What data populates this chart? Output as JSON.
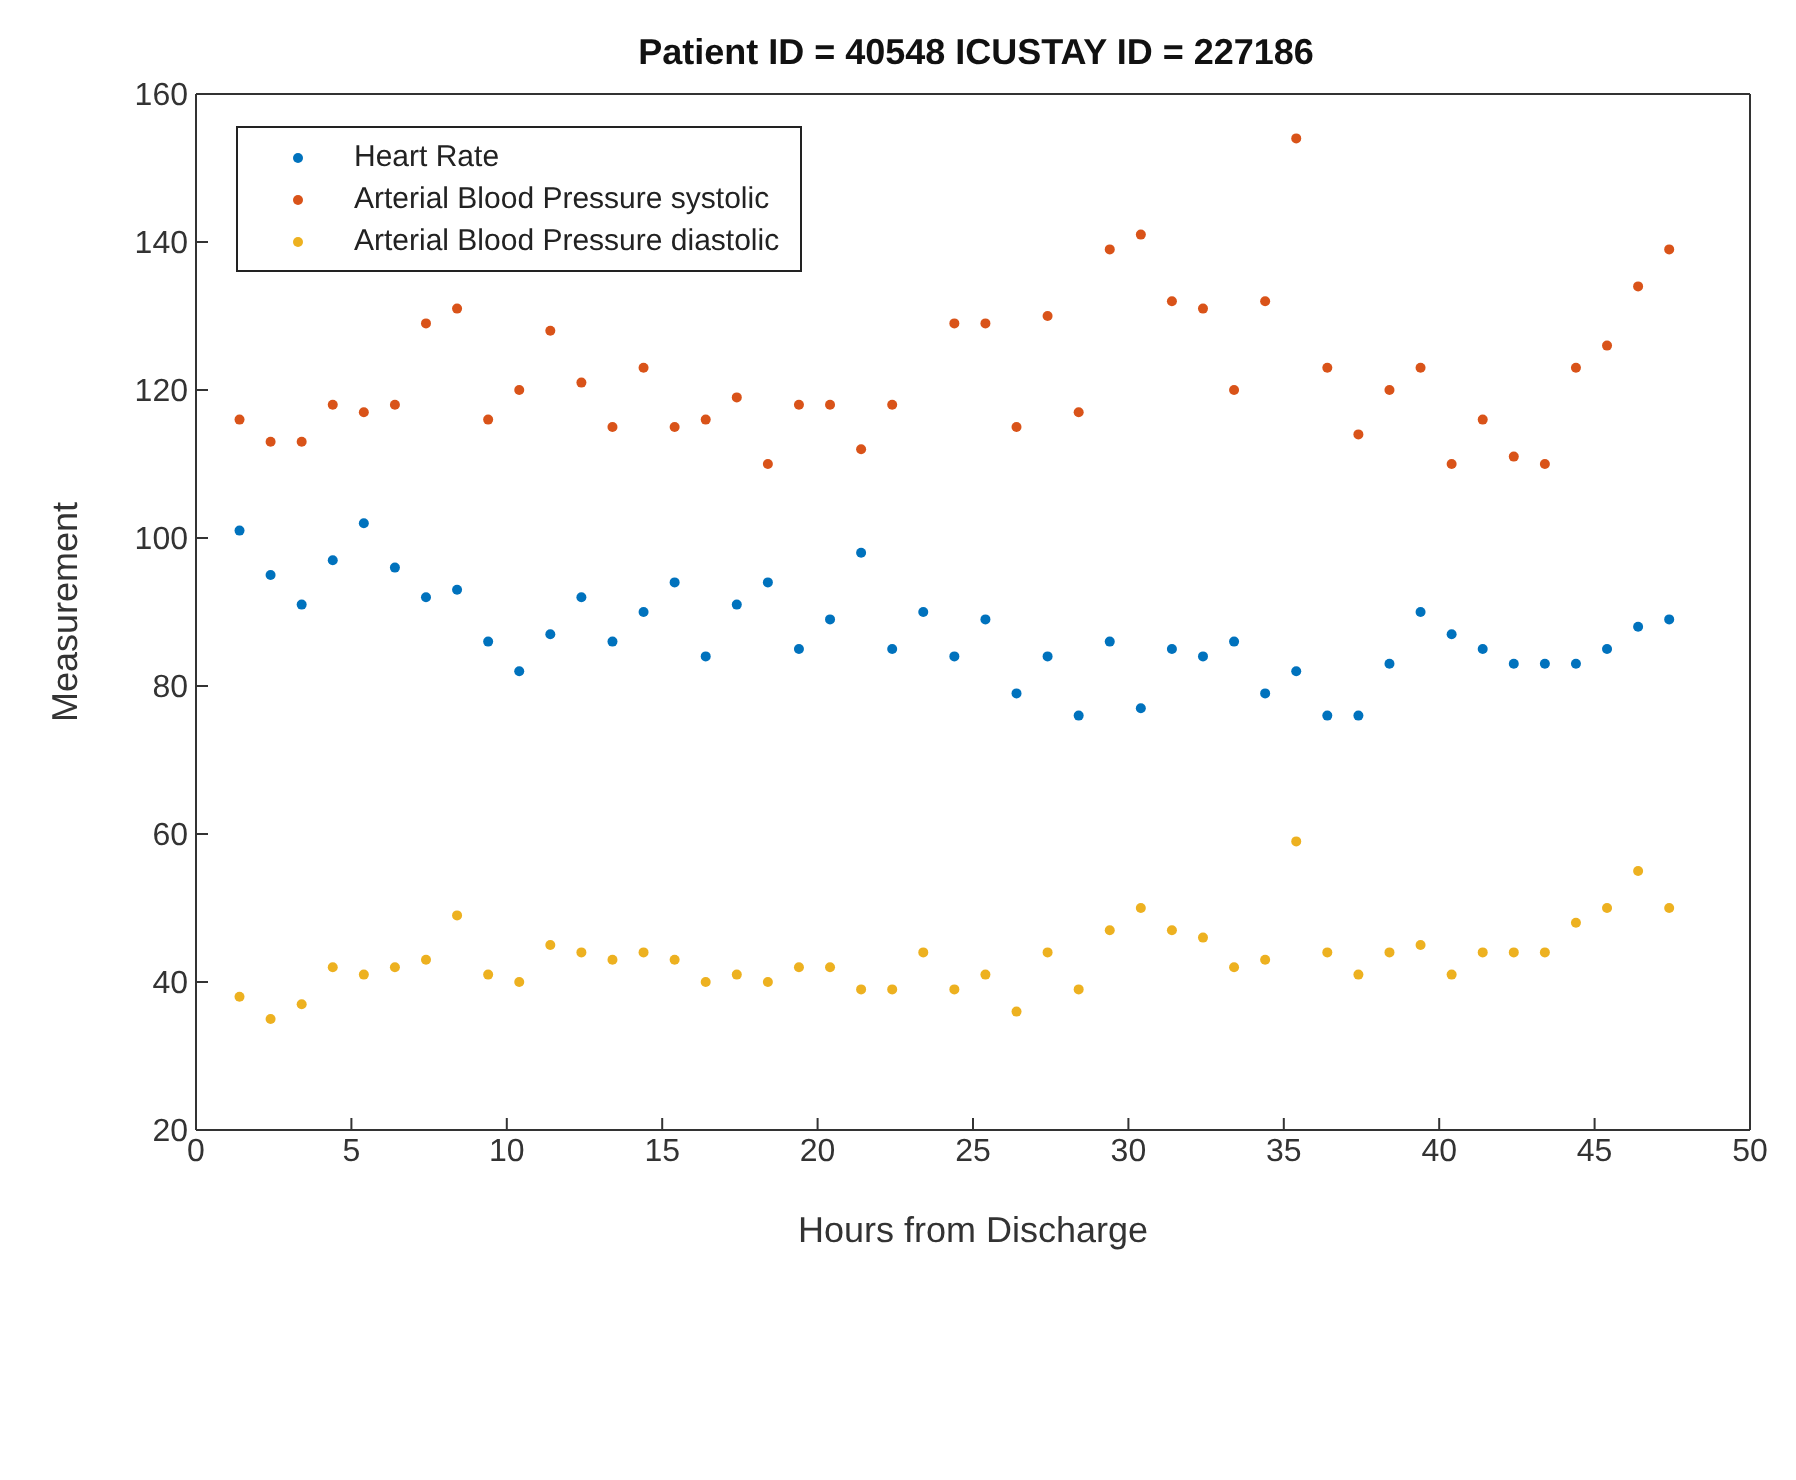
{
  "chart_data": {
    "type": "scatter",
    "title": "Patient ID = 40548 ICUSTAY ID = 227186",
    "xlabel": "Hours from Discharge",
    "ylabel": "Measurement",
    "x": [
      1.4,
      2.4,
      3.4,
      4.4,
      5.4,
      6.4,
      7.4,
      8.4,
      9.4,
      10.4,
      11.4,
      12.4,
      13.4,
      14.4,
      15.4,
      16.4,
      17.4,
      18.4,
      19.4,
      20.4,
      21.4,
      22.4,
      23.4,
      24.4,
      25.4,
      26.4,
      27.4,
      28.4,
      29.4,
      30.4,
      31.4,
      32.4,
      33.4,
      34.4,
      35.4,
      36.4,
      37.4,
      38.4,
      39.4,
      40.4,
      41.4,
      42.4,
      43.4,
      44.4,
      45.4,
      46.4,
      47.4
    ],
    "series": [
      {
        "name": "Heart Rate",
        "color": "#0072bd",
        "values": [
          101,
          95,
          91,
          97,
          102,
          96,
          92,
          93,
          86,
          82,
          87,
          92,
          86,
          90,
          94,
          84,
          91,
          94,
          85,
          89,
          98,
          85,
          90,
          84,
          89,
          79,
          84,
          76,
          86,
          77,
          85,
          84,
          86,
          79,
          82,
          76,
          76,
          83,
          90,
          87,
          85,
          83,
          83,
          83,
          85,
          88,
          89
        ]
      },
      {
        "name": "Arterial Blood Pressure systolic",
        "color": "#d95319",
        "values": [
          116,
          113,
          113,
          118,
          117,
          118,
          129,
          131,
          116,
          120,
          128,
          121,
          115,
          123,
          115,
          116,
          119,
          110,
          118,
          118,
          112,
          118,
          null,
          129,
          129,
          115,
          130,
          117,
          139,
          141,
          132,
          131,
          120,
          132,
          154,
          123,
          114,
          120,
          123,
          110,
          116,
          111,
          110,
          123,
          126,
          134,
          139
        ]
      },
      {
        "name": "Arterial Blood Pressure diastolic",
        "color": "#edb120",
        "values": [
          38,
          35,
          37,
          42,
          41,
          42,
          43,
          49,
          41,
          40,
          45,
          44,
          43,
          44,
          43,
          40,
          41,
          40,
          42,
          42,
          39,
          39,
          44,
          39,
          41,
          36,
          44,
          39,
          47,
          50,
          47,
          46,
          42,
          43,
          59,
          44,
          41,
          44,
          45,
          41,
          44,
          44,
          44,
          48,
          50,
          55,
          50
        ]
      }
    ],
    "xlim": [
      0,
      50
    ],
    "xticks": [
      0,
      5,
      10,
      15,
      20,
      25,
      30,
      35,
      40,
      45,
      50
    ],
    "ylim": [
      20,
      160
    ],
    "yticks": [
      20,
      40,
      60,
      80,
      100,
      120,
      140,
      160
    ],
    "grid": false,
    "legend": "top left",
    "marker": "circle"
  }
}
